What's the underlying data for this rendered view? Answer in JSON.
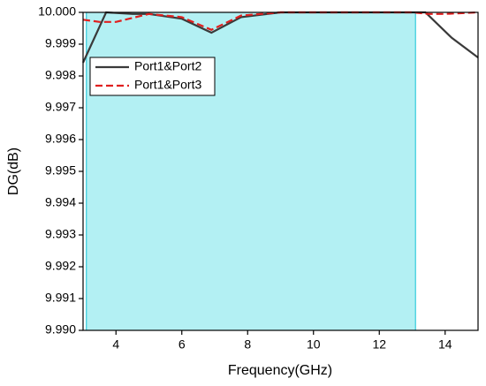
{
  "chart_data": {
    "type": "line",
    "xlabel": "Frequency(GHz)",
    "ylabel": "DG(dB)",
    "xlim": [
      3,
      15
    ],
    "xticks": [
      4,
      6,
      8,
      10,
      12,
      14
    ],
    "ylim": [
      9.99,
      10
    ],
    "yticks": [
      {
        "value": 9.99,
        "label": "9.990"
      },
      9.991,
      9.992,
      9.993,
      9.994,
      9.995,
      9.996,
      9.997,
      9.998,
      9.999,
      {
        "value": 10,
        "label": "10.000"
      }
    ],
    "shaded_region": [
      3.1,
      13.1
    ],
    "shade_color": "#b3f0f3",
    "shade_edge_color": "#33ccdd",
    "legend": "upper left",
    "series": [
      {
        "name": "Port1&Port2",
        "color": "#3a3a3a",
        "dash": false,
        "x": [
          3,
          3.7,
          4.5,
          5,
          6,
          6.9,
          7.8,
          9,
          10,
          11,
          12,
          13,
          13.4,
          14.2,
          15
        ],
        "values": [
          9.99842,
          10,
          9.99995,
          9.99995,
          9.9998,
          9.99936,
          9.99985,
          10,
          10,
          10,
          10,
          10,
          10,
          9.9992,
          9.99858
        ]
      },
      {
        "name": "Port1&Port3",
        "color": "#e02020",
        "dash": true,
        "x": [
          3,
          3.5,
          4,
          5,
          6,
          6.9,
          7.8,
          9,
          10,
          11,
          12,
          13,
          13.5,
          14,
          15
        ],
        "values": [
          9.99977,
          9.9997,
          9.9997,
          9.99995,
          9.99985,
          9.99945,
          9.9999,
          10,
          10,
          10,
          10,
          10,
          9.99995,
          9.99995,
          10
        ]
      }
    ]
  }
}
